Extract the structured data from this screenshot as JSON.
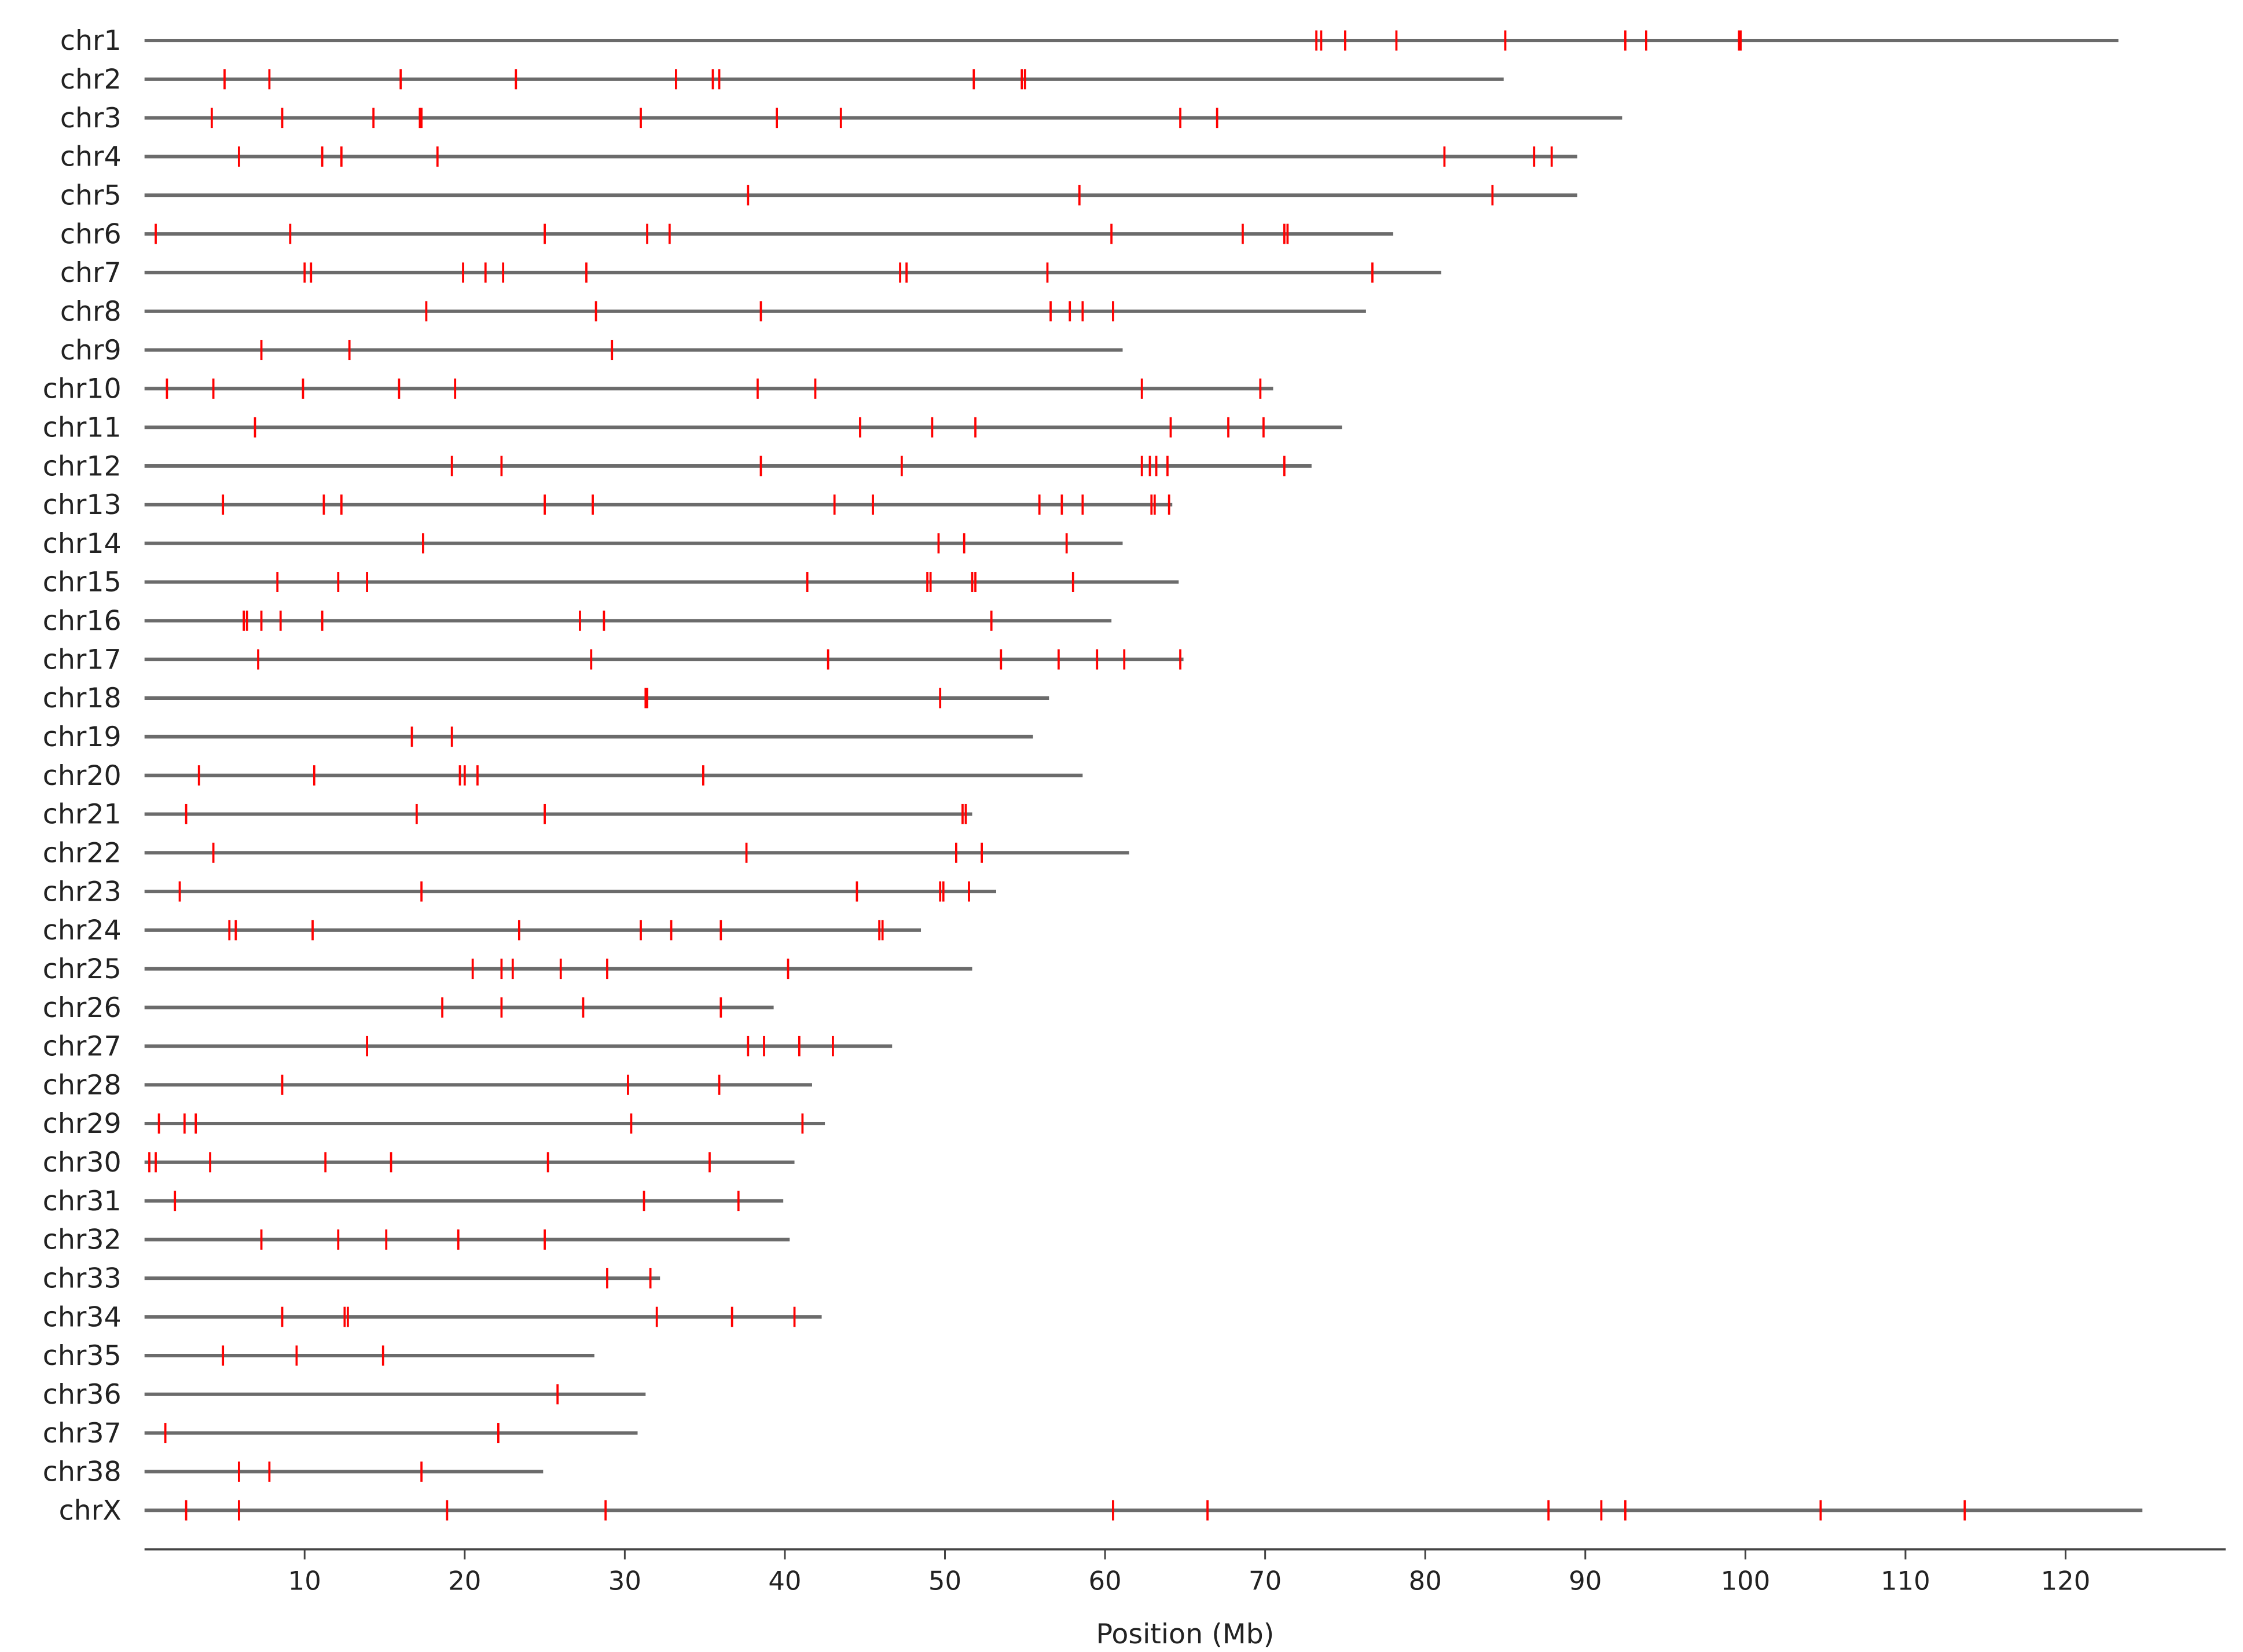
{
  "chart_data": {
    "type": "ideogram",
    "xlabel": "Position (Mb)",
    "xlim": [
      0,
      130
    ],
    "xticks": [
      10,
      20,
      30,
      40,
      50,
      60,
      70,
      80,
      90,
      100,
      110,
      120
    ],
    "line_color": "#6b6b6b",
    "marker_color": "#ff0000",
    "categories": [
      "chr1",
      "chr2",
      "chr3",
      "chr4",
      "chr5",
      "chr6",
      "chr7",
      "chr8",
      "chr9",
      "chr10",
      "chr11",
      "chr12",
      "chr13",
      "chr14",
      "chr15",
      "chr16",
      "chr17",
      "chr18",
      "chr19",
      "chr20",
      "chr21",
      "chr22",
      "chr23",
      "chr24",
      "chr25",
      "chr26",
      "chr27",
      "chr28",
      "chr29",
      "chr30",
      "chr31",
      "chr32",
      "chr33",
      "chr34",
      "chr35",
      "chr36",
      "chr37",
      "chr38",
      "chrX"
    ],
    "lengths": [
      123.3,
      84.9,
      92.3,
      89.5,
      89.5,
      78.0,
      81.0,
      76.3,
      61.1,
      70.5,
      74.8,
      72.9,
      64.2,
      61.1,
      64.6,
      60.4,
      64.9,
      56.5,
      55.5,
      58.6,
      51.7,
      61.5,
      53.2,
      48.5,
      51.7,
      39.3,
      46.7,
      41.7,
      42.5,
      40.6,
      39.9,
      40.3,
      32.2,
      42.3,
      28.1,
      31.3,
      30.8,
      24.9,
      124.8
    ],
    "positions": [
      [
        73.2,
        73.5,
        75.0,
        78.2,
        85.0,
        92.5,
        93.8,
        99.6,
        99.7
      ],
      [
        5.0,
        7.8,
        16.0,
        23.2,
        33.2,
        35.5,
        35.9,
        51.8,
        54.8,
        55.0
      ],
      [
        4.2,
        8.6,
        14.3,
        17.2,
        17.3,
        31.0,
        39.5,
        43.5,
        64.7,
        67.0
      ],
      [
        5.9,
        11.1,
        12.3,
        18.3,
        81.2,
        86.8,
        87.9
      ],
      [
        37.7,
        58.4,
        84.2
      ],
      [
        0.7,
        9.1,
        25.0,
        31.4,
        32.8,
        60.4,
        68.6,
        71.2,
        71.4
      ],
      [
        10.0,
        10.4,
        19.9,
        21.3,
        22.4,
        27.6,
        47.2,
        47.6,
        56.4,
        76.7
      ],
      [
        17.6,
        28.2,
        38.5,
        56.6,
        57.8,
        58.6,
        60.5
      ],
      [
        7.3,
        12.8,
        29.2
      ],
      [
        1.4,
        4.3,
        9.9,
        15.9,
        19.4,
        38.3,
        41.9,
        62.3,
        69.7
      ],
      [
        6.9,
        44.7,
        49.2,
        51.9,
        64.1,
        67.7,
        69.9
      ],
      [
        19.2,
        22.3,
        38.5,
        47.3,
        62.3,
        62.8,
        63.2,
        63.9,
        71.2
      ],
      [
        4.9,
        11.2,
        12.3,
        25.0,
        28.0,
        43.1,
        45.5,
        55.9,
        57.3,
        58.6,
        62.9,
        63.1,
        64.0
      ],
      [
        17.4,
        49.6,
        51.2,
        57.6
      ],
      [
        8.3,
        12.1,
        13.9,
        41.4,
        48.9,
        49.1,
        51.7,
        51.9,
        58.0
      ],
      [
        6.2,
        6.4,
        7.3,
        8.5,
        11.1,
        27.2,
        28.7,
        52.9
      ],
      [
        7.1,
        27.9,
        42.7,
        53.5,
        57.1,
        59.5,
        61.2,
        64.7
      ],
      [
        31.3,
        31.4,
        49.7
      ],
      [
        16.7,
        19.2
      ],
      [
        3.4,
        10.6,
        19.7,
        20.0,
        20.8,
        34.9
      ],
      [
        2.6,
        17.0,
        25.0,
        51.1,
        51.3
      ],
      [
        4.3,
        37.6,
        50.7,
        52.3
      ],
      [
        2.2,
        17.3,
        44.5,
        49.7,
        49.9,
        51.5
      ],
      [
        5.3,
        5.7,
        10.5,
        23.4,
        31.0,
        32.9,
        36.0,
        45.9,
        46.1
      ],
      [
        20.5,
        22.3,
        23.0,
        26.0,
        28.9,
        40.2
      ],
      [
        18.6,
        22.3,
        27.4,
        36.0
      ],
      [
        13.9,
        37.7,
        38.7,
        40.9,
        43.0
      ],
      [
        8.6,
        30.2,
        35.9
      ],
      [
        0.9,
        2.5,
        3.2,
        30.4,
        41.1
      ],
      [
        0.3,
        0.7,
        4.1,
        11.3,
        15.4,
        25.2,
        35.3
      ],
      [
        1.9,
        31.2,
        37.1
      ],
      [
        7.3,
        12.1,
        15.1,
        19.6,
        25.0
      ],
      [
        28.9,
        31.6
      ],
      [
        8.6,
        12.5,
        12.7,
        32.0,
        36.7,
        40.6
      ],
      [
        4.9,
        9.5,
        14.9
      ],
      [
        25.8
      ],
      [
        1.3,
        22.1
      ],
      [
        5.9,
        7.8,
        17.3
      ],
      [
        2.6,
        5.9,
        18.9,
        28.8,
        60.5,
        66.4,
        87.7,
        91.0,
        92.5,
        104.7,
        113.7
      ]
    ]
  }
}
